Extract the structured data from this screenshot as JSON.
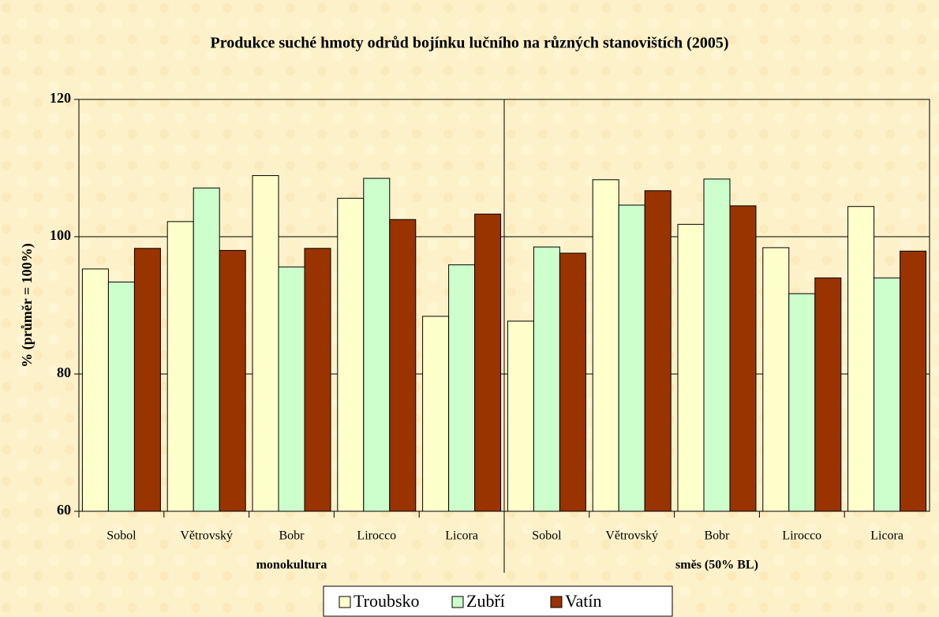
{
  "chart_data": {
    "type": "bar",
    "title": "Produkce suché hmoty odrůd bojínku lučního na různých stanovištích (2005)",
    "y_label": "% (průměr = 100%)",
    "categories": [
      "Sobol",
      "Větrovský",
      "Bobr",
      "Lirocco",
      "Licora",
      "Sobol",
      "Větrovský",
      "Bobr",
      "Lirocco",
      "Licora"
    ],
    "groups": [
      "monokultura",
      "směs (50% BL)"
    ],
    "series": [
      {
        "name": "Troubsko",
        "color": "#ffffcc",
        "values": [
          95.3,
          102.2,
          108.9,
          105.6,
          88.4,
          87.7,
          108.3,
          101.8,
          98.4,
          104.4
        ]
      },
      {
        "name": "Zubří",
        "color": "#ccffcc",
        "values": [
          93.4,
          107.1,
          95.6,
          108.5,
          95.9,
          98.5,
          104.6,
          108.4,
          91.7,
          94.0
        ]
      },
      {
        "name": "Vatín",
        "color": "#993300",
        "values": [
          98.3,
          98.0,
          98.3,
          102.5,
          103.3,
          97.6,
          106.7,
          104.5,
          94.0,
          97.9
        ]
      }
    ],
    "ylim": [
      60,
      120
    ],
    "yticks": [
      60,
      80,
      100,
      120
    ],
    "grid": true,
    "legend": "bottom"
  }
}
